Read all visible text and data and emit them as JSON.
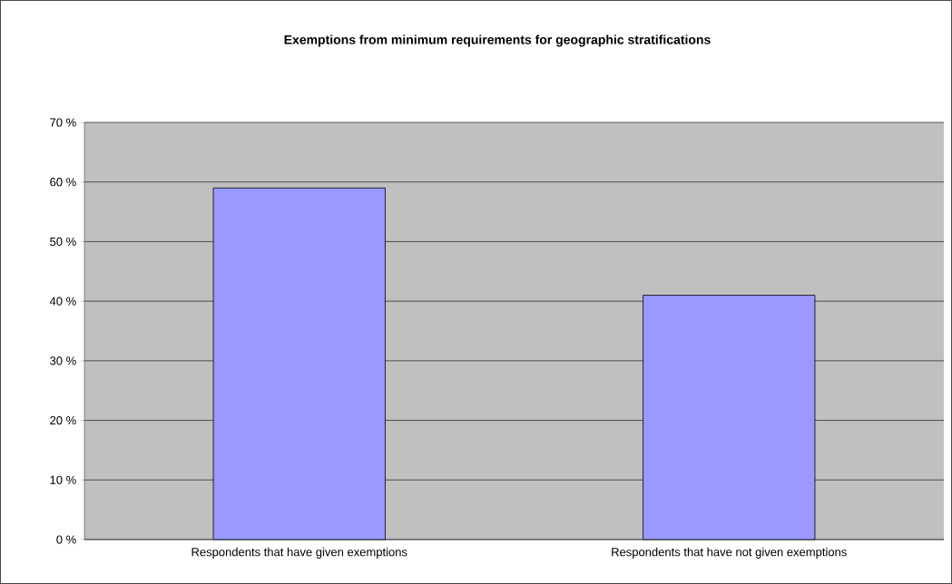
{
  "chart_data": {
    "type": "bar",
    "title": "Exemptions from minimum requirements for geographic stratifications",
    "categories": [
      "Respondents that have given exemptions",
      "Respondents that have not given exemptions"
    ],
    "values": [
      59,
      41
    ],
    "color": "#9999ff",
    "ylim": [
      0,
      70
    ],
    "yticks": [
      {
        "value": 0,
        "label": "0 %"
      },
      {
        "value": 10,
        "label": "10 %"
      },
      {
        "value": 20,
        "label": "20 %"
      },
      {
        "value": 30,
        "label": "30 %"
      },
      {
        "value": 40,
        "label": "40 %"
      },
      {
        "value": 50,
        "label": "50 %"
      },
      {
        "value": 60,
        "label": "60 %"
      },
      {
        "value": 70,
        "label": "70 %"
      }
    ],
    "grid": "y"
  }
}
